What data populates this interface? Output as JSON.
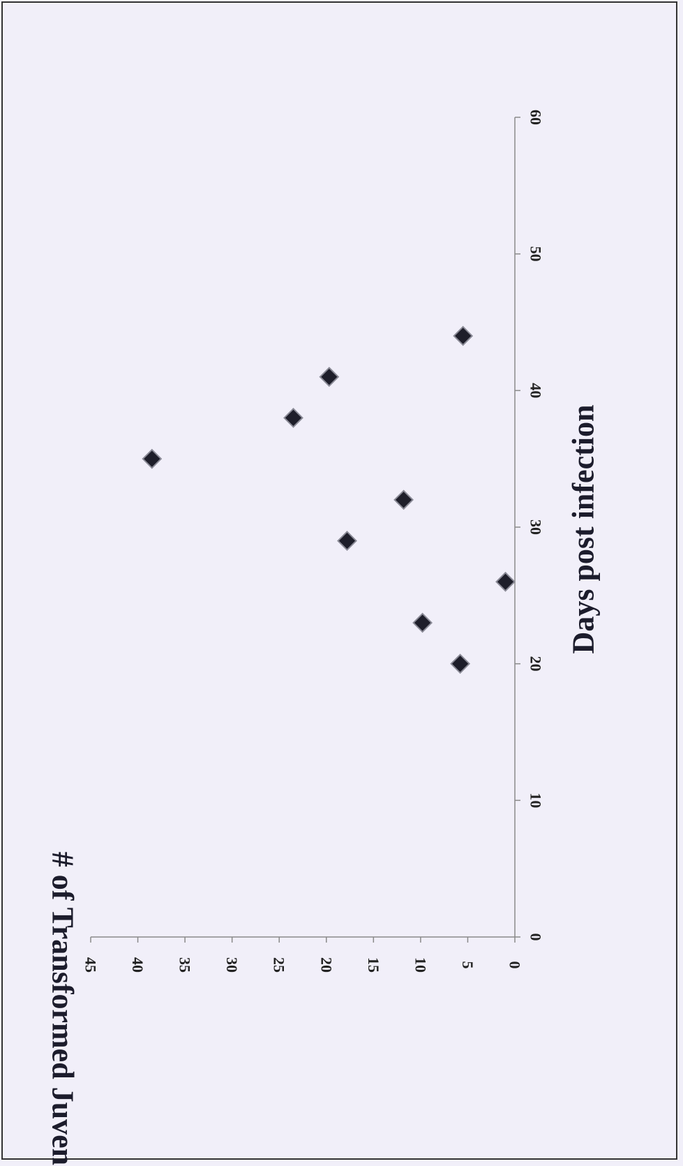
{
  "chart_data": {
    "type": "scatter",
    "title": "",
    "xlabel": "Days post infection",
    "ylabel": "# of Transformed Juveniles",
    "xlim": [
      0,
      60
    ],
    "ylim": [
      0,
      45
    ],
    "x_ticks": [
      "0",
      "10",
      "20",
      "30",
      "40",
      "50",
      "60"
    ],
    "y_ticks": [
      "0",
      "5",
      "10",
      "15",
      "20",
      "25",
      "30",
      "35",
      "40",
      "45"
    ],
    "orientation": "rotated 90 degrees (page turned)",
    "grid": false,
    "legend": "none",
    "marker": "diamond",
    "marker_color": "#1e1e2a",
    "points": [
      {
        "x": 20,
        "y": 5.8
      },
      {
        "x": 23,
        "y": 9.8
      },
      {
        "x": 26,
        "y": 1.0
      },
      {
        "x": 29,
        "y": 17.8
      },
      {
        "x": 32,
        "y": 11.8
      },
      {
        "x": 35,
        "y": 38.5
      },
      {
        "x": 38,
        "y": 23.5
      },
      {
        "x": 41,
        "y": 19.7
      },
      {
        "x": 44,
        "y": 5.5
      }
    ]
  }
}
